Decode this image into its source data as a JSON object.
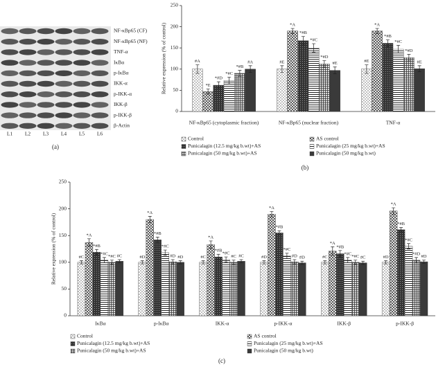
{
  "blot": {
    "rows": [
      "NF-κBp65 (CF)",
      "NF-κBp65 (NF)",
      "TNF-α",
      "IκBα",
      "p-IκBα",
      "IKK-α",
      "p-IKK-α",
      "IKK-β",
      "p-IKK-β",
      "β-Actin"
    ],
    "lanes": [
      "L1",
      "L2",
      "L3",
      "L4",
      "L5",
      "L6"
    ],
    "panel_label": "(a)"
  },
  "chart_data": [
    {
      "type": "bar",
      "panel_label": "(b)",
      "y_label": "Relative expression (% of control)",
      "categories": [
        "NF-κBp65 (cytoplasmic fraction)",
        "NF-κBp65 (nuclear fraction)",
        "TNF-α"
      ],
      "ylim": [
        0,
        250
      ],
      "yticks": [
        0,
        50,
        100,
        150,
        200,
        250
      ],
      "series": [
        {
          "name": "Control",
          "color": "#333333",
          "pattern": "dots",
          "values": [
            100,
            100,
            100
          ],
          "errors": [
            10,
            8,
            10
          ],
          "annotations": [
            "#A",
            "#E",
            "#E"
          ]
        },
        {
          "name": "AS control",
          "color": "#333333",
          "pattern": "crosshatch",
          "values": [
            47,
            190,
            190
          ],
          "errors": [
            6,
            6,
            6
          ],
          "annotations": [
            "*E",
            "*A",
            "*A"
          ]
        },
        {
          "name": "Punicalagin (12.5 mg/kg b.wt)+AS",
          "color": "#333333",
          "pattern": "speckle",
          "values": [
            62,
            167,
            161
          ],
          "errors": [
            8,
            10,
            8
          ],
          "annotations": [
            "*#D",
            "*#B",
            "*#B"
          ]
        },
        {
          "name": "Punicalagin (25 mg/kg b.wt)+AS",
          "color": "#333333",
          "pattern": "hlines",
          "values": [
            73,
            150,
            147
          ],
          "errors": [
            8,
            10,
            9
          ],
          "annotations": [
            "*#C",
            "*#C",
            "*#C"
          ]
        },
        {
          "name": "Punicalagin (50 mg/kg b.wt)+AS",
          "color": "#333333",
          "pattern": "grid",
          "values": [
            90,
            112,
            127
          ],
          "errors": [
            7,
            8,
            8
          ],
          "annotations": [
            "*#B",
            "*#D",
            "*#D"
          ]
        },
        {
          "name": "Punicalagin (50 mg/kg b.wt)",
          "color": "#333333",
          "pattern": "solid",
          "values": [
            100,
            97,
            101
          ],
          "errors": [
            8,
            8,
            7
          ],
          "annotations": [
            "#A",
            "#E",
            "#E"
          ]
        }
      ]
    },
    {
      "type": "bar",
      "panel_label": "(c)",
      "y_label": "Relative expression (% of control)",
      "categories": [
        "IκBα",
        "p-IκBα",
        "IKK-α",
        "p-IKK-α",
        "IKK-β",
        "p-IKK-β"
      ],
      "ylim": [
        0,
        250
      ],
      "yticks": [
        0,
        50,
        100,
        150,
        200,
        250
      ],
      "series": [
        {
          "name": "Control",
          "color": "#333333",
          "pattern": "dots",
          "values": [
            100,
            100,
            100,
            100,
            100,
            100
          ],
          "errors": [
            3,
            3,
            3,
            3,
            3,
            3
          ],
          "annotations": [
            "#C",
            "#D",
            "#C",
            "#D",
            "#C",
            "#D"
          ]
        },
        {
          "name": "AS control",
          "color": "#333333",
          "pattern": "crosshatch",
          "values": [
            137,
            180,
            133,
            190,
            121,
            196
          ],
          "errors": [
            7,
            6,
            7,
            5,
            8,
            6
          ],
          "annotations": [
            "*A",
            "*A",
            "*A",
            "*A",
            "*A",
            "*A"
          ]
        },
        {
          "name": "Punicalagin (12.5 mg/kg b.wt)+AS",
          "color": "#333333",
          "pattern": "speckle",
          "values": [
            119,
            142,
            110,
            155,
            116,
            161
          ],
          "errors": [
            5,
            5,
            5,
            4,
            6,
            4
          ],
          "annotations": [
            "*#B",
            "*#B",
            "*#B",
            "*#B",
            "*#B",
            "*#B"
          ]
        },
        {
          "name": "Punicalagin (25 mg/kg b.wt)+AS",
          "color": "#333333",
          "pattern": "hlines",
          "values": [
            104,
            118,
            105,
            112,
            104,
            130
          ],
          "errors": [
            5,
            5,
            5,
            5,
            5,
            5
          ],
          "annotations": [
            "*#C",
            "*#C",
            "*#C",
            "*#C",
            "*#C",
            "*#C"
          ]
        },
        {
          "name": "Punicalagin (50 mg/kg b.wt)+AS",
          "color": "#333333",
          "pattern": "grid",
          "values": [
            100,
            101,
            100,
            101,
            100,
            104
          ],
          "errors": [
            4,
            4,
            4,
            4,
            4,
            5
          ],
          "annotations": [
            "*#C",
            "#D",
            "#C",
            "#D",
            "*#C",
            "*#D"
          ]
        },
        {
          "name": "Punicalagin (50 mg/kg b.wt)",
          "color": "#333333",
          "pattern": "solid",
          "values": [
            102,
            100,
            102,
            99,
            99,
            101
          ],
          "errors": [
            3,
            3,
            3,
            3,
            3,
            3
          ],
          "annotations": [
            "#C",
            "#D",
            "#C",
            "#D",
            "#C",
            "#D"
          ]
        }
      ]
    }
  ]
}
